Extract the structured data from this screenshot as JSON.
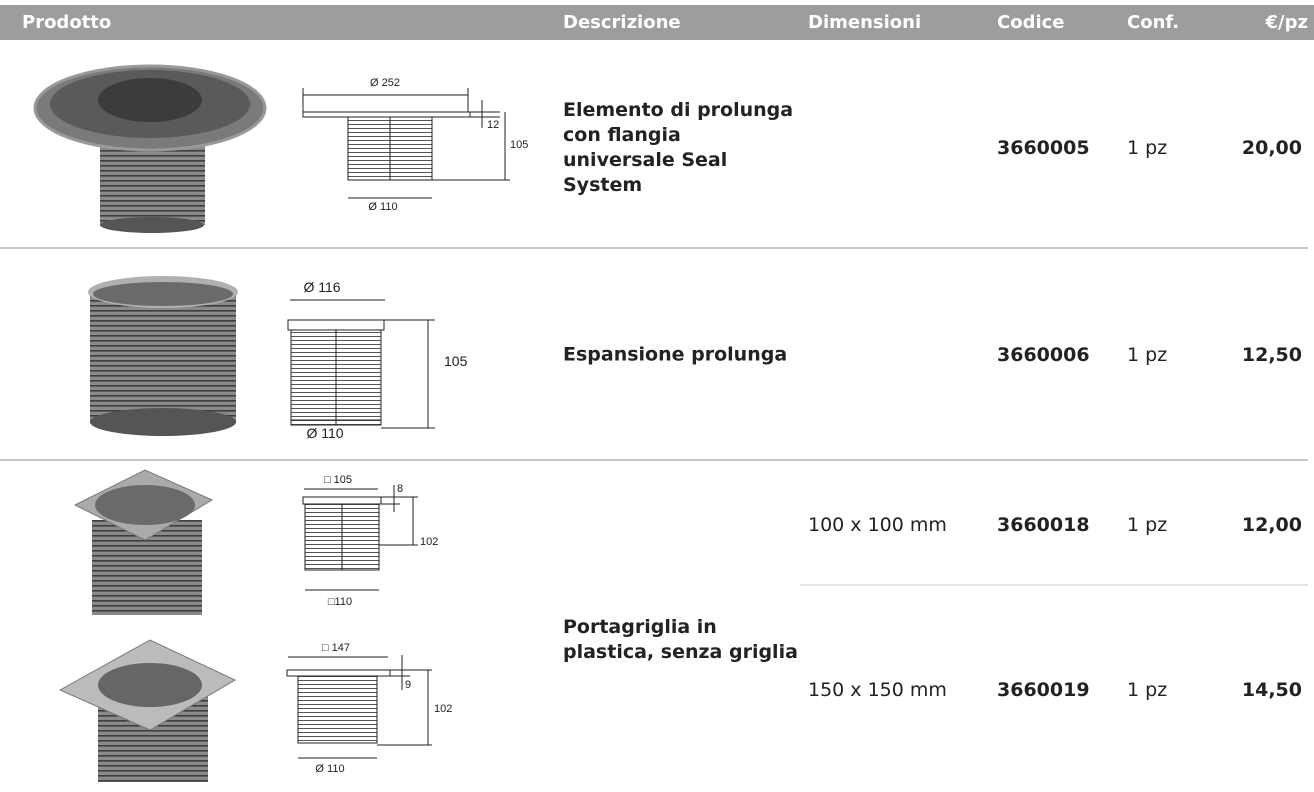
{
  "table": {
    "header": [
      "Prodotto",
      "Descrizione",
      "Dimensioni",
      "Codice",
      "Conf.",
      "€/pz"
    ],
    "rows": [
      {
        "description": "Elemento di prolunga con flangia universale Seal System",
        "items": [
          {
            "code": "3660005",
            "pack": "1 pz",
            "price": "20,00",
            "drawing_labels": [
              "Ø 252",
              "12",
              "105",
              "Ø 110"
            ]
          }
        ]
      },
      {
        "description": "Espansione prolunga",
        "items": [
          {
            "code": "3660006",
            "pack": "1 pz",
            "price": "12,50",
            "drawing_labels": [
              "Ø 116",
              "105",
              "Ø 110"
            ]
          }
        ]
      },
      {
        "description": "Portagriglia in plastica, senza griglia",
        "items": [
          {
            "dimensions": "100 x 100 mm",
            "code": "3660018",
            "pack": "1 pz",
            "price": "12,00",
            "drawing_labels": [
              "□ 105",
              "8",
              "102",
              "□110"
            ]
          },
          {
            "dimensions": "150 x 150 mm",
            "code": "3660019",
            "pack": "1 pz",
            "price": "14,50",
            "drawing_labels": [
              "□ 147",
              "9",
              "102",
              "Ø 110"
            ]
          }
        ]
      }
    ]
  }
}
